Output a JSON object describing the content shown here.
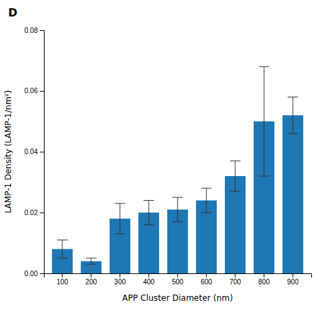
{
  "chart_data": {
    "type": "bar",
    "title": "D",
    "xlabel": "APP Cluster Diameter (nm)",
    "ylabel": "LAMP-1 Density (LAMP-1/nm²)",
    "categories": [
      100,
      200,
      300,
      400,
      500,
      600,
      700,
      800,
      900
    ],
    "values": [
      0.008,
      0.004,
      0.018,
      0.02,
      0.021,
      0.024,
      0.032,
      0.05,
      0.052
    ],
    "errors": [
      0.003,
      0.001,
      0.005,
      0.004,
      0.004,
      0.004,
      0.005,
      0.018,
      0.006
    ],
    "ylim": [
      0,
      0.08
    ],
    "yticks": [
      {
        "value": 0,
        "label": "0.00"
      },
      0.02,
      0.04,
      0.06,
      0.08
    ],
    "grid": false
  }
}
